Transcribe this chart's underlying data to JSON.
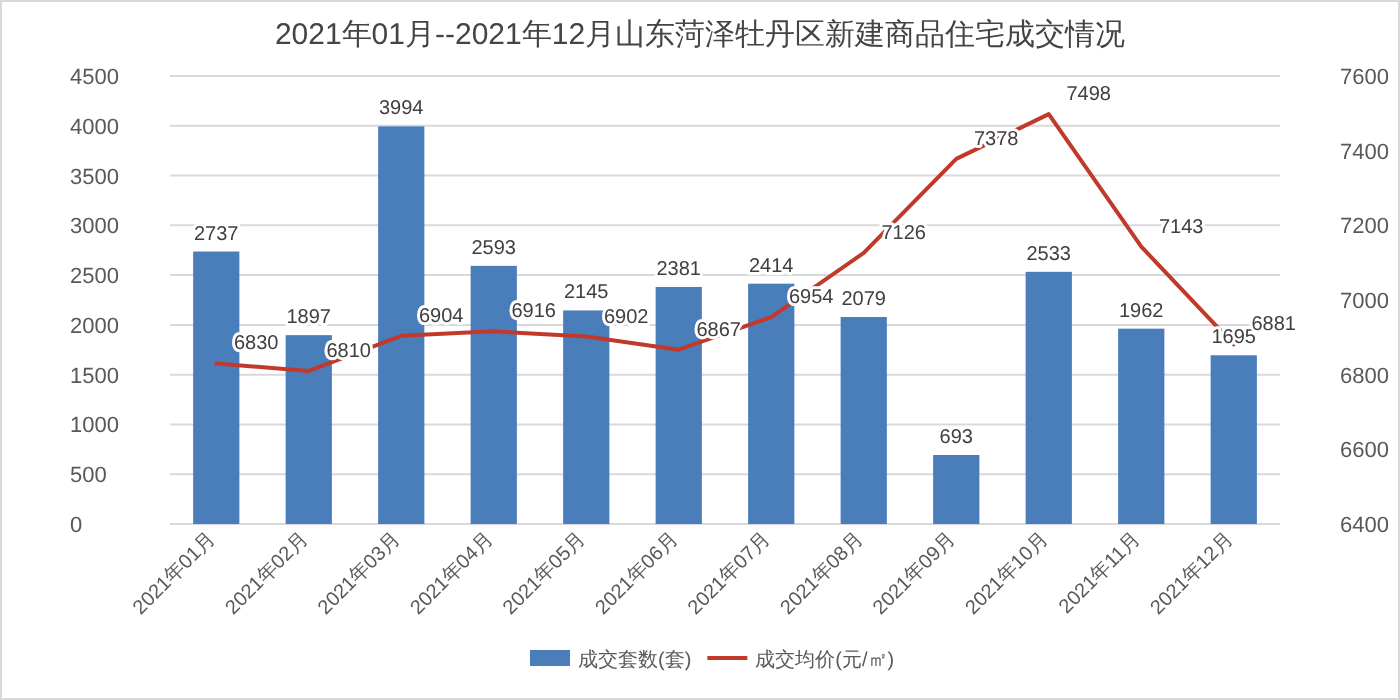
{
  "chart_data": {
    "type": "bar",
    "title": "2021年01月--2021年12月山东菏泽牡丹区新建商品住宅成交情况",
    "categories": [
      "2021年01月",
      "2021年02月",
      "2021年03月",
      "2021年04月",
      "2021年05月",
      "2021年06月",
      "2021年07月",
      "2021年08月",
      "2021年09月",
      "2021年10月",
      "2021年11月",
      "2021年12月"
    ],
    "series": [
      {
        "name": "成交套数(套)",
        "color": "#4a7ebb",
        "values": [
          2737,
          1897,
          3994,
          2593,
          2145,
          2381,
          2414,
          2079,
          693,
          2533,
          1962,
          1695
        ]
      },
      {
        "name": "成交均价(元/㎡)",
        "type": "line",
        "axis": "y2",
        "color": "#c0392b",
        "values": [
          6830,
          6810,
          6904,
          6916,
          6902,
          6867,
          6954,
          7126,
          7378,
          7498,
          7143,
          6881
        ]
      }
    ],
    "ylim": [
      0,
      4500
    ],
    "yticks": [
      0,
      500,
      1000,
      1500,
      2000,
      2500,
      3000,
      3500,
      4000,
      4500
    ],
    "y2lim": [
      6400,
      7600
    ],
    "y2ticks": [
      6400,
      6600,
      6800,
      7000,
      7200,
      7400,
      7600
    ],
    "grid": "y",
    "legend": "bottom",
    "data_labels": true,
    "marker": "none",
    "line_style": "solid"
  }
}
